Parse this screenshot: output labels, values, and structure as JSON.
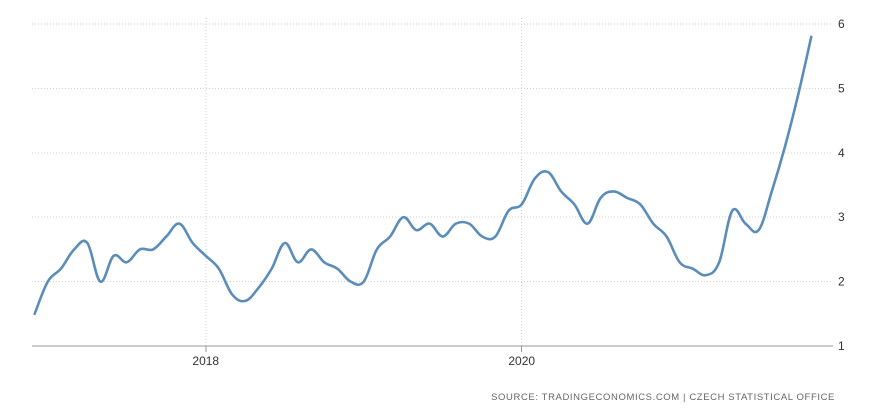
{
  "chart_data": {
    "type": "line",
    "title": "",
    "xlabel": "",
    "ylabel": "",
    "x_tick_labels": [
      "2018",
      "2020"
    ],
    "x_tick_values": [
      2018.0,
      2020.0
    ],
    "xlim": [
      2016.9,
      2021.92
    ],
    "y_tick_labels": [
      "1",
      "2",
      "3",
      "4",
      "5",
      "6"
    ],
    "y_tick_values": [
      1,
      2,
      3,
      4,
      5,
      6
    ],
    "ylim": [
      1,
      6
    ],
    "grid": true,
    "legend": "none",
    "source": "SOURCE: TRADINGECONOMICS.COM | CZECH STATISTICAL OFFICE",
    "colors": {
      "line": "#5b8db8",
      "grid": "#cfcfcf",
      "axis": "#999999"
    },
    "series": [
      {
        "x": [
          2016.917,
          2017.0,
          2017.083,
          2017.167,
          2017.25,
          2017.333,
          2017.417,
          2017.5,
          2017.583,
          2017.667,
          2017.75,
          2017.833,
          2017.917,
          2018.0,
          2018.083,
          2018.167,
          2018.25,
          2018.333,
          2018.417,
          2018.5,
          2018.583,
          2018.667,
          2018.75,
          2018.833,
          2018.917,
          2019.0,
          2019.083,
          2019.167,
          2019.25,
          2019.333,
          2019.417,
          2019.5,
          2019.583,
          2019.667,
          2019.75,
          2019.833,
          2019.917,
          2020.0,
          2020.083,
          2020.167,
          2020.25,
          2020.333,
          2020.417,
          2020.5,
          2020.583,
          2020.667,
          2020.75,
          2020.833,
          2020.917,
          2021.0,
          2021.083,
          2021.167,
          2021.25,
          2021.333,
          2021.417,
          2021.5,
          2021.583,
          2021.667,
          2021.75,
          2021.833
        ],
        "values": [
          1.5,
          2.0,
          2.2,
          2.5,
          2.6,
          2.0,
          2.4,
          2.3,
          2.5,
          2.5,
          2.7,
          2.9,
          2.6,
          2.4,
          2.2,
          1.8,
          1.7,
          1.9,
          2.2,
          2.6,
          2.3,
          2.5,
          2.3,
          2.2,
          2.0,
          2.0,
          2.5,
          2.7,
          3.0,
          2.8,
          2.9,
          2.7,
          2.9,
          2.9,
          2.7,
          2.7,
          3.1,
          3.2,
          3.6,
          3.7,
          3.4,
          3.2,
          2.9,
          3.3,
          3.4,
          3.3,
          3.2,
          2.9,
          2.7,
          2.3,
          2.2,
          2.1,
          2.3,
          3.1,
          2.9,
          2.8,
          3.4,
          4.1,
          4.9,
          5.8
        ]
      }
    ]
  }
}
